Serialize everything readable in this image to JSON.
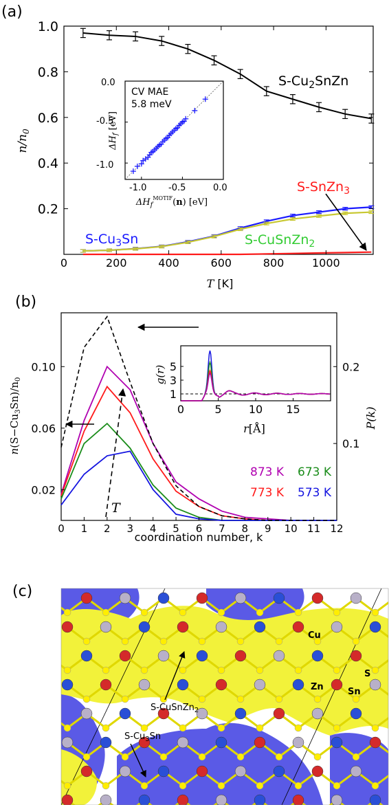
{
  "panels": {
    "a_letter": "(a)",
    "b_letter": "(b)",
    "c_letter": "(c)"
  },
  "colors": {
    "black": "#000000",
    "blue": "#1a1aff",
    "red": "#ff1a1a",
    "olive": "#c8c832",
    "green": "#1a8c1a",
    "magenta": "#b000b0",
    "darkblue": "#1414e0",
    "yellow": "#f2f23a",
    "purple_blue": "#5a5ae6"
  },
  "chart_data": [
    {
      "type": "line",
      "panel": "(a)",
      "xlabel": "T [K]",
      "ylabel": "n/n0",
      "xlim": [
        0,
        1180
      ],
      "ylim": [
        0,
        1.0
      ],
      "xticks": [
        "0",
        "200",
        "400",
        "600",
        "800",
        "1000"
      ],
      "yticks": [
        "0.2",
        "0.4",
        "0.6",
        "0.8",
        "1.0"
      ],
      "x": [
        73,
        173,
        273,
        373,
        473,
        573,
        673,
        773,
        873,
        973,
        1073,
        1173
      ],
      "series": [
        {
          "name": "S-Cu2SnZn",
          "color": "black",
          "errorbars": true,
          "values": [
            0.97,
            0.96,
            0.955,
            0.935,
            0.9,
            0.85,
            0.79,
            0.715,
            0.68,
            0.645,
            0.615,
            0.595
          ]
        },
        {
          "name": "S-Cu3Sn",
          "color": "blue",
          "errorbars": true,
          "values": [
            0.015,
            0.018,
            0.025,
            0.035,
            0.055,
            0.08,
            0.115,
            0.145,
            0.17,
            0.185,
            0.2,
            0.207
          ]
        },
        {
          "name": "S-CuSnZn2",
          "color": "olive",
          "errorbars": true,
          "values": [
            0.015,
            0.018,
            0.024,
            0.034,
            0.053,
            0.078,
            0.11,
            0.135,
            0.155,
            0.168,
            0.18,
            0.185
          ]
        },
        {
          "name": "S-SnZn3",
          "color": "red",
          "errorbars": false,
          "values": [
            0.0,
            0.0,
            0.0,
            0.0,
            0.0,
            0.0,
            0.0,
            0.002,
            0.004,
            0.006,
            0.008,
            0.01
          ]
        }
      ],
      "series_labels": {
        "cu2snzn": "S-Cu2SnZn",
        "cu3sn": "S-Cu3Sn",
        "cusnzn2": "S-CuSnZn2",
        "snzn3": "S-SnZn3"
      },
      "inset": {
        "type": "scatter",
        "text_line1": "CV MAE",
        "text_line2": "5.8 meV",
        "xlabel": "ΔHf^MOTIF(n) [eV]",
        "ylabel": "ΔHf [eV]",
        "xlim": [
          -1.2,
          0.0
        ],
        "ylim": [
          -1.2,
          0.0
        ],
        "xticks": [
          "-1.0",
          "-0.5",
          "0.0"
        ],
        "yticks": [
          "-1.0",
          "-0.5",
          "0.0"
        ],
        "points": [
          [
            -1.1,
            -1.1
          ],
          [
            -1.05,
            -1.04
          ],
          [
            -1.0,
            -1.01
          ],
          [
            -0.98,
            -0.97
          ],
          [
            -0.95,
            -0.95
          ],
          [
            -0.92,
            -0.93
          ],
          [
            -0.9,
            -0.9
          ],
          [
            -0.88,
            -0.87
          ],
          [
            -0.86,
            -0.86
          ],
          [
            -0.84,
            -0.84
          ],
          [
            -0.82,
            -0.82
          ],
          [
            -0.8,
            -0.8
          ],
          [
            -0.78,
            -0.78
          ],
          [
            -0.76,
            -0.77
          ],
          [
            -0.74,
            -0.74
          ],
          [
            -0.72,
            -0.72
          ],
          [
            -0.7,
            -0.7
          ],
          [
            -0.68,
            -0.69
          ],
          [
            -0.66,
            -0.66
          ],
          [
            -0.64,
            -0.64
          ],
          [
            -0.62,
            -0.62
          ],
          [
            -0.6,
            -0.6
          ],
          [
            -0.58,
            -0.58
          ],
          [
            -0.56,
            -0.57
          ],
          [
            -0.54,
            -0.54
          ],
          [
            -0.52,
            -0.52
          ],
          [
            -0.5,
            -0.5
          ],
          [
            -0.48,
            -0.49
          ],
          [
            -0.46,
            -0.46
          ],
          [
            -0.35,
            -0.36
          ],
          [
            -0.22,
            -0.22
          ]
        ]
      }
    },
    {
      "type": "line",
      "panel": "(b)",
      "xlabel": "coordination number, k",
      "ylabel_left": "n(S−Cu3Sn)/n0",
      "ylabel_right": "P(k)",
      "xlim": [
        0,
        12
      ],
      "ylim_left": [
        0,
        0.135
      ],
      "ylim_right": [
        0,
        0.27
      ],
      "xticks": [
        "0",
        "1",
        "2",
        "3",
        "4",
        "5",
        "6",
        "7",
        "8",
        "9",
        "10",
        "11",
        "12"
      ],
      "yticks_left": [
        "0.02",
        "0.06",
        "0.10"
      ],
      "yticks_right": [
        "0.1",
        "0.2"
      ],
      "x": [
        0,
        1,
        2,
        3,
        4,
        5,
        6,
        7,
        8,
        9,
        10,
        11,
        12
      ],
      "series": [
        {
          "name": "873 K",
          "color": "magenta",
          "values": [
            0.017,
            0.065,
            0.1,
            0.085,
            0.05,
            0.025,
            0.014,
            0.006,
            0.002,
            0.001,
            0.0,
            0.0,
            0.0
          ]
        },
        {
          "name": "773 K",
          "color": "red",
          "values": [
            0.016,
            0.058,
            0.087,
            0.07,
            0.04,
            0.019,
            0.009,
            0.003,
            0.001,
            0.0,
            0.0,
            0.0,
            0.0
          ]
        },
        {
          "name": "673 K",
          "color": "green",
          "values": [
            0.014,
            0.05,
            0.063,
            0.047,
            0.023,
            0.008,
            0.002,
            0.0,
            0.0,
            0.0,
            0.0,
            0.0,
            0.0
          ]
        },
        {
          "name": "573 K",
          "color": "darkblue",
          "values": [
            0.01,
            0.03,
            0.042,
            0.045,
            0.02,
            0.004,
            0.001,
            0.0,
            0.0,
            0.0,
            0.0,
            0.0,
            0.0
          ]
        }
      ],
      "pk_series": {
        "name": "P(k)",
        "axis": "right",
        "style": "dashed",
        "values": [
          0.095,
          0.225,
          0.265,
          0.18,
          0.1,
          0.045,
          0.018,
          0.006,
          0.002,
          0.0,
          0.0,
          0.0,
          0.0
        ]
      },
      "arrow_label": "T",
      "inset": {
        "type": "line",
        "xlabel": "r[Å]",
        "ylabel": "g(r)",
        "xlim": [
          0,
          20
        ],
        "ylim": [
          0,
          8
        ],
        "xticks": [
          "0",
          "5",
          "10",
          "15"
        ],
        "yticks": [
          "1",
          "3",
          "5"
        ],
        "reference_line": 1
      }
    }
  ],
  "panel_c": {
    "labels": {
      "cu": "Cu",
      "s": "S",
      "zn": "Zn",
      "sn": "Sn",
      "cusnzn2": "S-CuSnZn2",
      "cu3sn": "S-Cu3Sn"
    }
  }
}
